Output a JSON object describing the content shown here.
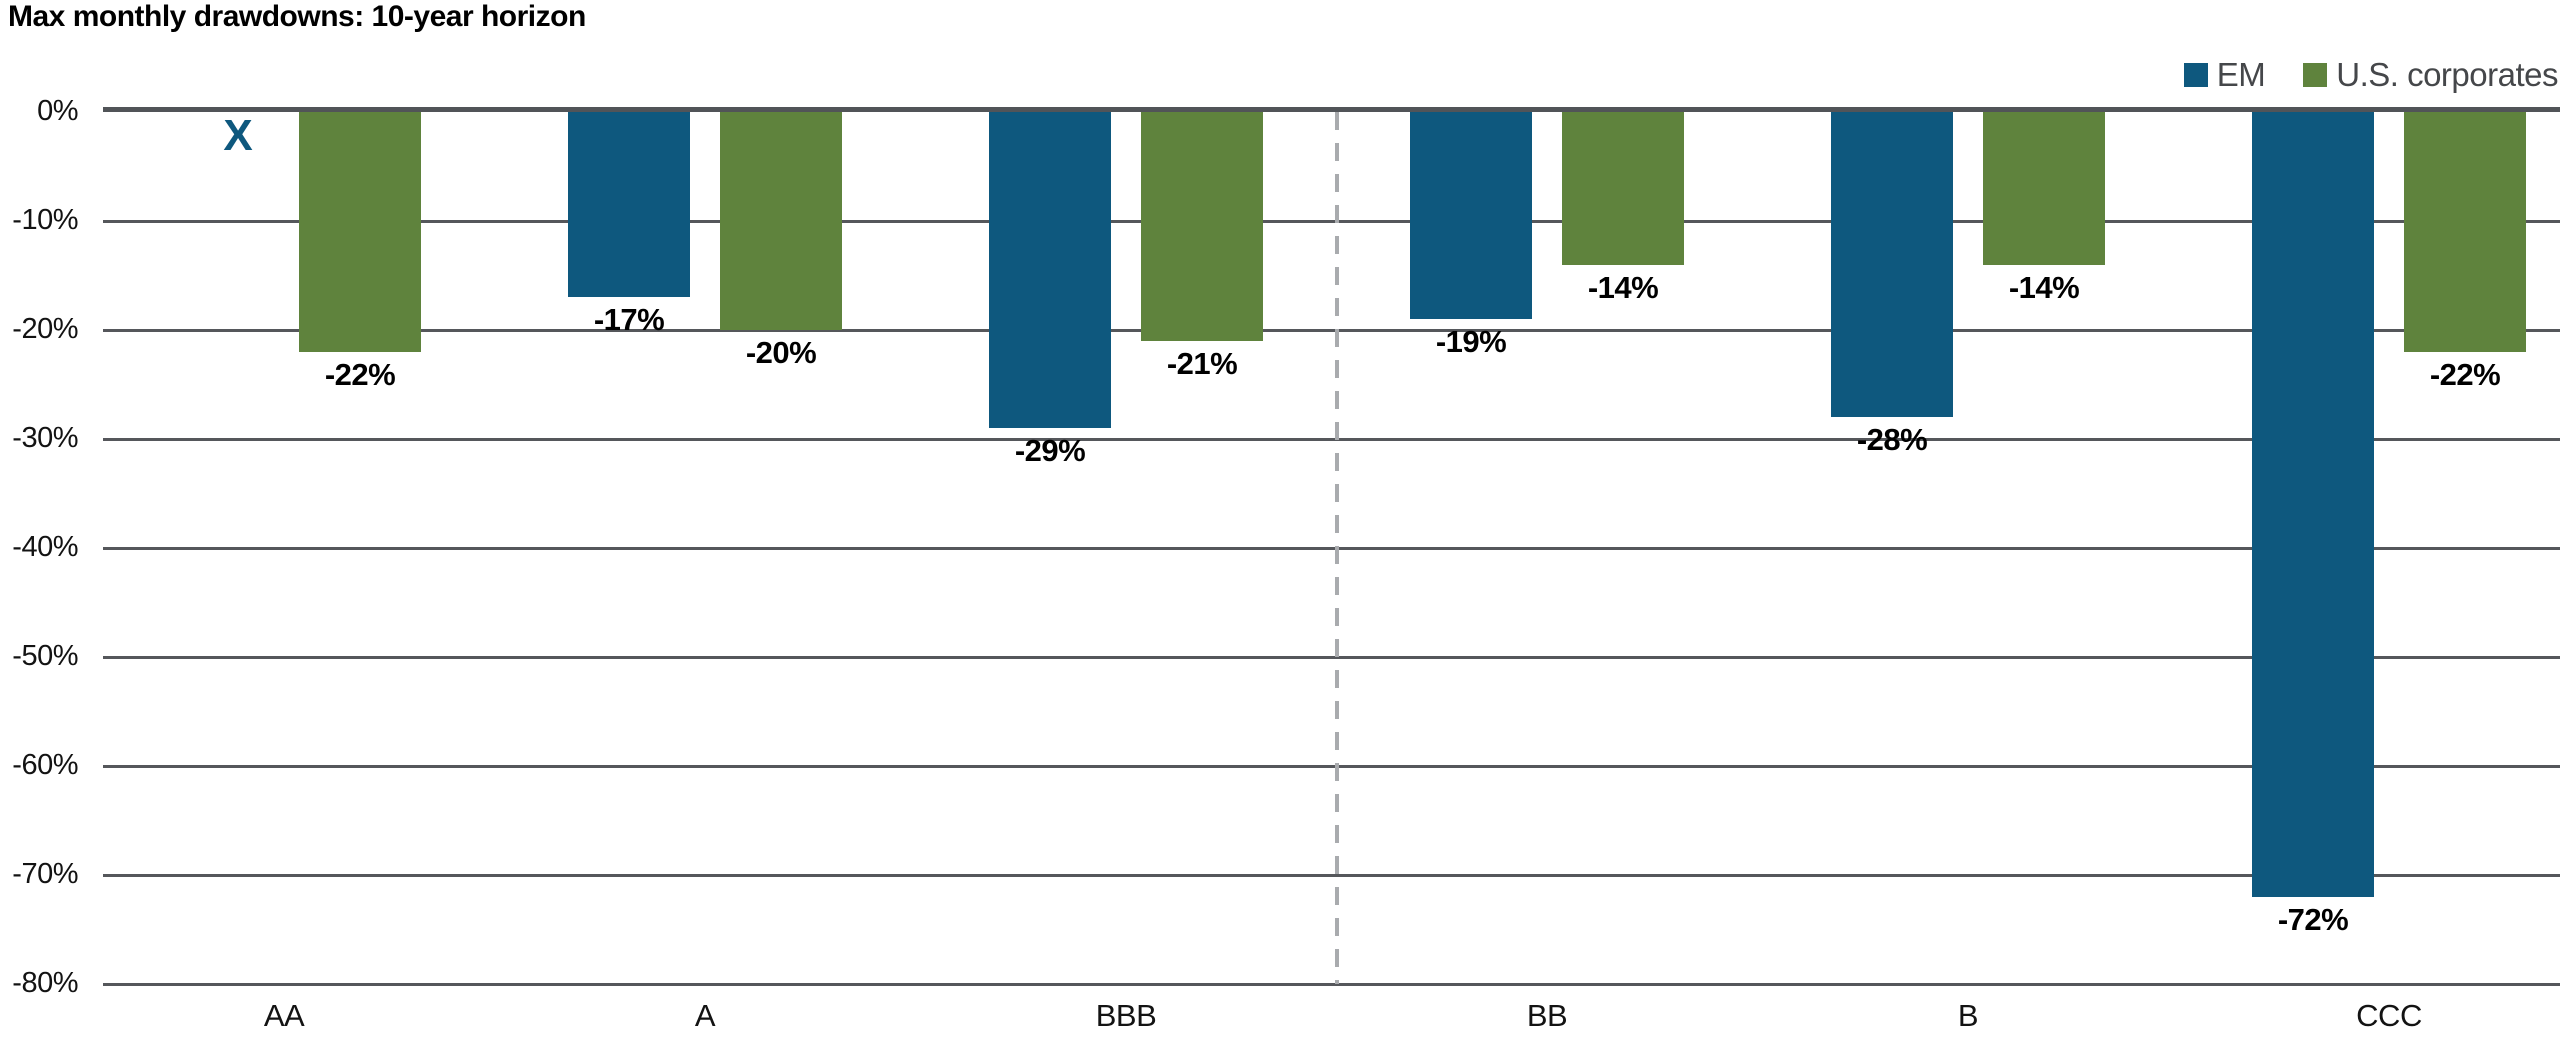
{
  "title": "Max monthly drawdowns: 10-year horizon",
  "legend": {
    "items": [
      {
        "label": "EM",
        "color": "#0E587E"
      },
      {
        "label": "U.S. corporates",
        "color": "#5F833D"
      }
    ]
  },
  "chart_data": {
    "type": "bar",
    "title": "Max monthly drawdowns: 10-year horizon",
    "categories": [
      "AA",
      "A",
      "BBB",
      "BB",
      "B",
      "CCC"
    ],
    "series": [
      {
        "name": "EM",
        "color": "#0E587E",
        "values": [
          null,
          -17,
          -29,
          -19,
          -28,
          -72
        ],
        "labels": [
          "",
          "-17%",
          "-29%",
          "-19%",
          "-28%",
          "-72%"
        ]
      },
      {
        "name": "U.S. corporates",
        "color": "#5F833D",
        "values": [
          -22,
          -20,
          -21,
          -14,
          -14,
          -22
        ],
        "labels": [
          "-22%",
          "-20%",
          "-21%",
          "-14%",
          "-14%",
          "-22%"
        ]
      }
    ],
    "missing_data": {
      "series": "EM",
      "category": "AA",
      "marker": "X",
      "marker_color": "#0E587E"
    },
    "xlabel": "",
    "ylabel": "",
    "ylim": [
      -80,
      0
    ],
    "ytick_labels": [
      "0%",
      "-10%",
      "-20%",
      "-30%",
      "-40%",
      "-50%",
      "-60%",
      "-70%",
      "-80%"
    ],
    "grid": true,
    "divider_between_categories": [
      "BBB",
      "BB"
    ],
    "divider_style": "dashed",
    "legend_position": "top-right"
  }
}
